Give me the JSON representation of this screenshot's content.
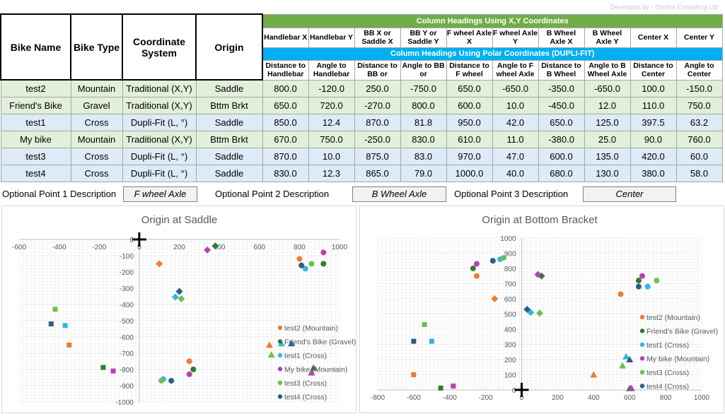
{
  "top_hint": "Developed by - Strohm Consulting Ltd",
  "headers": {
    "bike_name": "Bike Name",
    "bike_type": "Bike Type",
    "coord_system": "Coordinate System",
    "origin": "Origin",
    "band_xy": "Column Headings Using X,Y Coordinates",
    "band_polar": "Column Headings Using Polar Coordinates (DUPLI-FIT)",
    "xy_cols": [
      "Handlebar X",
      "Handlebar Y",
      "BB X or Saddle X",
      "BB Y or Saddle Y",
      "F wheel Axle X",
      "F wheel Axle Y",
      "B Wheel Axle X",
      "B Wheel Axle Y",
      "Center X",
      "Center Y"
    ],
    "polar_cols": [
      "Distance to Handlebar",
      "Angle to Handlebar",
      "Distance to BB or",
      "Angle to BB or",
      "Distance to F wheel",
      "Angle to F wheel Axle",
      "Distance to B Wheel",
      "Angle to B Wheel Axle",
      "Distance to Center",
      "Angle to Center"
    ]
  },
  "rows": [
    {
      "name": "test2",
      "type": "Mountain",
      "system": "Traditional (X,Y)",
      "origin": "Saddle",
      "vals": [
        "800.0",
        "-120.0",
        "250.0",
        "-750.0",
        "650.0",
        "-650.0",
        "-350.0",
        "-650.0",
        "100.0",
        "-150.0"
      ]
    },
    {
      "name": "Friend's Bike",
      "type": "Gravel",
      "system": "Traditional (X,Y)",
      "origin": "Bttm Brkt",
      "vals": [
        "650.0",
        "720.0",
        "-270.0",
        "800.0",
        "600.0",
        "10.0",
        "-450.0",
        "12.0",
        "110.0",
        "750.0"
      ]
    },
    {
      "name": "test1",
      "type": "Cross",
      "system": "Dupli-Fit (L, °)",
      "origin": "Saddle",
      "vals": [
        "850.0",
        "12.4",
        "870.0",
        "81.8",
        "950.0",
        "42.0",
        "650.0",
        "125.0",
        "397.5",
        "63.2"
      ]
    },
    {
      "name": "My bike",
      "type": "Mountain",
      "system": "Traditional (X,Y)",
      "origin": "Bttm Brkt",
      "vals": [
        "670.0",
        "750.0",
        "-250.0",
        "830.0",
        "610.0",
        "11.0",
        "-380.0",
        "25.0",
        "90.0",
        "760.0"
      ]
    },
    {
      "name": "test3",
      "type": "Cross",
      "system": "Dupli-Fit (L, °)",
      "origin": "Saddle",
      "vals": [
        "870.0",
        "10.0",
        "875.0",
        "83.0",
        "970.0",
        "47.0",
        "600.0",
        "135.0",
        "420.0",
        "60.0"
      ]
    },
    {
      "name": "test4",
      "type": "Cross",
      "system": "Dupli-Fit (L, °)",
      "origin": "Saddle",
      "vals": [
        "830.0",
        "12.3",
        "865.0",
        "79.0",
        "1000.0",
        "40.0",
        "680.0",
        "130.0",
        "380.0",
        "58.0"
      ]
    }
  ],
  "optional": {
    "p1_label": "Optional Point 1 Description",
    "p1_value": "F wheel Axle",
    "p2_label": "Optional Point 2 Description",
    "p2_value": "B Wheel Axle",
    "p3_label": "Optional Point 3 Description",
    "p3_value": "Center"
  },
  "colors": {
    "orange": "#ed7d31",
    "darkgreen": "#2e7d32",
    "lightblue": "#33b5e5",
    "magenta": "#b73fb5",
    "lightgreen": "#6cc04a",
    "darkteal": "#2a5f86",
    "header_green": "#70ad47",
    "header_blue": "#00b0f0"
  },
  "chart_data": [
    {
      "type": "scatter",
      "title": "Origin at Saddle",
      "xlim": [
        -600,
        1000
      ],
      "ylim": [
        -1000,
        0
      ],
      "xticks": [
        "-600",
        "-400",
        "-200",
        "0",
        "200",
        "400",
        "600",
        "800",
        "1000"
      ],
      "yticks": [
        "0",
        "-100",
        "-200",
        "-300",
        "-400",
        "-500",
        "-600",
        "-700",
        "-800",
        "-900",
        "-1000"
      ],
      "grid": true,
      "legend_position": "right",
      "series": [
        {
          "name": "test2 (Mountain)",
          "color": "#ed7d31",
          "points": [
            {
              "x": 800,
              "y": -120,
              "m": "circle"
            },
            {
              "x": 250,
              "y": -750,
              "m": "circle"
            },
            {
              "x": 650,
              "y": -650,
              "m": "triangle"
            },
            {
              "x": -350,
              "y": -650,
              "m": "square"
            },
            {
              "x": 100,
              "y": -150,
              "m": "diamond"
            }
          ]
        },
        {
          "name": "Friend's Bike (Gravel)",
          "color": "#2e7d32",
          "points": [
            {
              "x": 920,
              "y": -150,
              "m": "circle"
            },
            {
              "x": 270,
              "y": -800,
              "m": "circle"
            },
            {
              "x": 870,
              "y": -790,
              "m": "triangle"
            },
            {
              "x": -180,
              "y": -788,
              "m": "square"
            },
            {
              "x": 380,
              "y": -40,
              "m": "diamond"
            }
          ]
        },
        {
          "name": "test1 (Cross)",
          "color": "#33b5e5",
          "points": [
            {
              "x": 830,
              "y": -180,
              "m": "circle"
            },
            {
              "x": 120,
              "y": -860,
              "m": "circle"
            },
            {
              "x": 710,
              "y": -640,
              "m": "triangle"
            },
            {
              "x": -370,
              "y": -530,
              "m": "square"
            },
            {
              "x": 180,
              "y": -355,
              "m": "diamond"
            }
          ]
        },
        {
          "name": "My bike (Mountain)",
          "color": "#b73fb5",
          "points": [
            {
              "x": 920,
              "y": -80,
              "m": "circle"
            },
            {
              "x": 250,
              "y": -830,
              "m": "circle"
            },
            {
              "x": 860,
              "y": -820,
              "m": "triangle"
            },
            {
              "x": -130,
              "y": -810,
              "m": "square"
            },
            {
              "x": 340,
              "y": -65,
              "m": "diamond"
            }
          ]
        },
        {
          "name": "test3 (Cross)",
          "color": "#6cc04a",
          "points": [
            {
              "x": 860,
              "y": -150,
              "m": "circle"
            },
            {
              "x": 110,
              "y": -870,
              "m": "circle"
            },
            {
              "x": 660,
              "y": -710,
              "m": "triangle"
            },
            {
              "x": -420,
              "y": -430,
              "m": "square"
            },
            {
              "x": 210,
              "y": -365,
              "m": "diamond"
            }
          ]
        },
        {
          "name": "test4 (Cross)",
          "color": "#2a5f86",
          "points": [
            {
              "x": 810,
              "y": -160,
              "m": "circle"
            },
            {
              "x": 160,
              "y": -870,
              "m": "circle"
            },
            {
              "x": 760,
              "y": -640,
              "m": "triangle"
            },
            {
              "x": -440,
              "y": -520,
              "m": "square"
            },
            {
              "x": 200,
              "y": -320,
              "m": "diamond"
            }
          ]
        }
      ]
    },
    {
      "type": "scatter",
      "title": "Origin at Bottom Bracket",
      "xlim": [
        -800,
        1000
      ],
      "ylim": [
        0,
        1000
      ],
      "xticks": [
        "-800",
        "-600",
        "-400",
        "-200",
        "0",
        "200",
        "400",
        "600",
        "800",
        "1000"
      ],
      "yticks": [
        "1000",
        "900",
        "800",
        "700",
        "600",
        "500",
        "400",
        "300",
        "200",
        "100",
        "0"
      ],
      "grid": true,
      "legend_position": "right",
      "series": [
        {
          "name": "test2 (Mountain)",
          "color": "#ed7d31",
          "points": [
            {
              "x": -250,
              "y": 750,
              "m": "circle"
            },
            {
              "x": 550,
              "y": 630,
              "m": "circle"
            },
            {
              "x": 400,
              "y": 100,
              "m": "triangle"
            },
            {
              "x": -600,
              "y": 100,
              "m": "square"
            },
            {
              "x": -150,
              "y": 600,
              "m": "diamond"
            }
          ]
        },
        {
          "name": "Friend's Bike (Gravel)",
          "color": "#2e7d32",
          "points": [
            {
              "x": -270,
              "y": 800,
              "m": "circle"
            },
            {
              "x": 650,
              "y": 720,
              "m": "circle"
            },
            {
              "x": 600,
              "y": 10,
              "m": "triangle"
            },
            {
              "x": -450,
              "y": 12,
              "m": "square"
            },
            {
              "x": 110,
              "y": 750,
              "m": "diamond"
            }
          ]
        },
        {
          "name": "test1 (Cross)",
          "color": "#33b5e5",
          "points": [
            {
              "x": -120,
              "y": 860,
              "m": "circle"
            },
            {
              "x": 700,
              "y": 680,
              "m": "circle"
            },
            {
              "x": 580,
              "y": 220,
              "m": "triangle"
            },
            {
              "x": -500,
              "y": 320,
              "m": "square"
            },
            {
              "x": 50,
              "y": 510,
              "m": "diamond"
            }
          ]
        },
        {
          "name": "My bike (Mountain)",
          "color": "#b73fb5",
          "points": [
            {
              "x": -250,
              "y": 830,
              "m": "circle"
            },
            {
              "x": 670,
              "y": 750,
              "m": "circle"
            },
            {
              "x": 610,
              "y": 11,
              "m": "triangle"
            },
            {
              "x": -380,
              "y": 25,
              "m": "square"
            },
            {
              "x": 90,
              "y": 760,
              "m": "diamond"
            }
          ]
        },
        {
          "name": "test3 (Cross)",
          "color": "#6cc04a",
          "points": [
            {
              "x": -100,
              "y": 870,
              "m": "circle"
            },
            {
              "x": 750,
              "y": 720,
              "m": "circle"
            },
            {
              "x": 560,
              "y": 160,
              "m": "triangle"
            },
            {
              "x": -540,
              "y": 430,
              "m": "square"
            },
            {
              "x": 100,
              "y": 505,
              "m": "diamond"
            }
          ]
        },
        {
          "name": "test4 (Cross)",
          "color": "#2a5f86",
          "points": [
            {
              "x": -160,
              "y": 850,
              "m": "circle"
            },
            {
              "x": 650,
              "y": 680,
              "m": "circle"
            },
            {
              "x": 600,
              "y": 200,
              "m": "triangle"
            },
            {
              "x": -600,
              "y": 320,
              "m": "square"
            },
            {
              "x": 30,
              "y": 530,
              "m": "diamond"
            }
          ]
        }
      ]
    }
  ]
}
